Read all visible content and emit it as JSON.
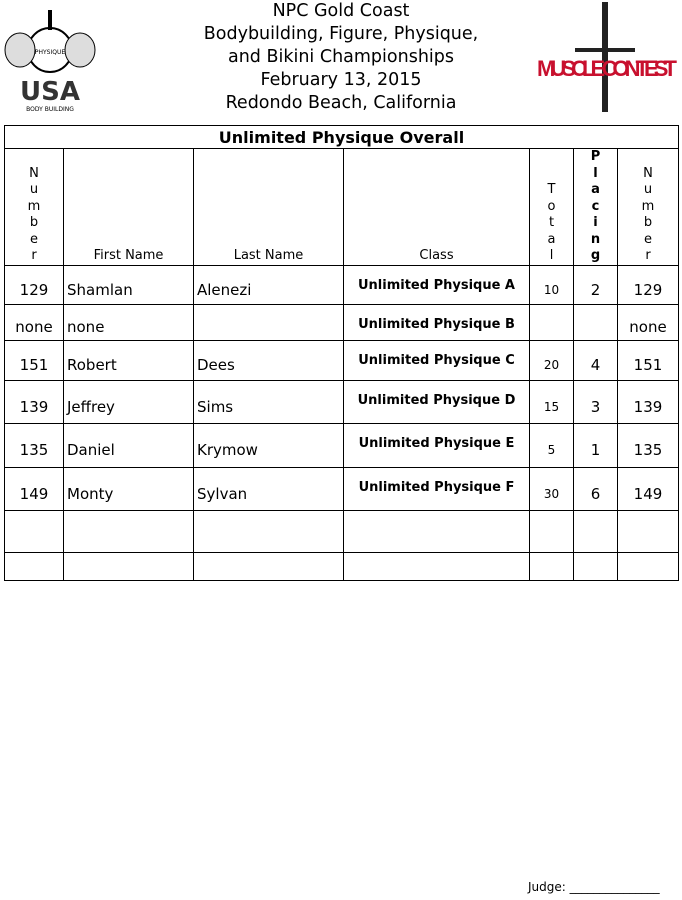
{
  "header": {
    "lines": [
      "NPC Gold Coast",
      "Bodybuilding, Figure, Physique,",
      "and Bikini Championships",
      "February 13, 2015",
      "Redondo Beach, California"
    ]
  },
  "logos": {
    "left": "NATIONAL PHYSIQUE COMMITTEE USA BODY BUILDING",
    "right": "MUSCLE CONTEST"
  },
  "table": {
    "title": "Unlimited Physique Overall",
    "columns": [
      "N\nu\nm\nb\ne\nr",
      "First Name",
      "Last Name",
      "Class",
      "T\no\nt\na\nl",
      "P\nl\na\nc\ni\nn\ng",
      "N\nu\nm\nb\ne\nr"
    ],
    "rows": [
      [
        "129",
        "Shamlan",
        "Alenezi",
        "Unlimited Physique A",
        "10",
        "2",
        "129"
      ],
      [
        "none",
        "none",
        "",
        "Unlimited Physique B",
        "",
        "",
        "none"
      ],
      [
        "151",
        "Robert",
        "Dees",
        "Unlimited Physique C",
        "20",
        "4",
        "151"
      ],
      [
        "139",
        "Jeffrey",
        "Sims",
        "Unlimited Physique D",
        "15",
        "3",
        "139"
      ],
      [
        "135",
        "Daniel",
        "Krymow",
        "Unlimited Physique E",
        "5",
        "1",
        "135"
      ],
      [
        "149",
        "Monty",
        "Sylvan",
        "Unlimited Physique F",
        "30",
        "6",
        "149"
      ],
      [
        "",
        "",
        "",
        "",
        "",
        "",
        ""
      ],
      [
        "",
        "",
        "",
        "",
        "",
        "",
        ""
      ]
    ]
  },
  "footer": {
    "judge": "Judge: _______________"
  }
}
